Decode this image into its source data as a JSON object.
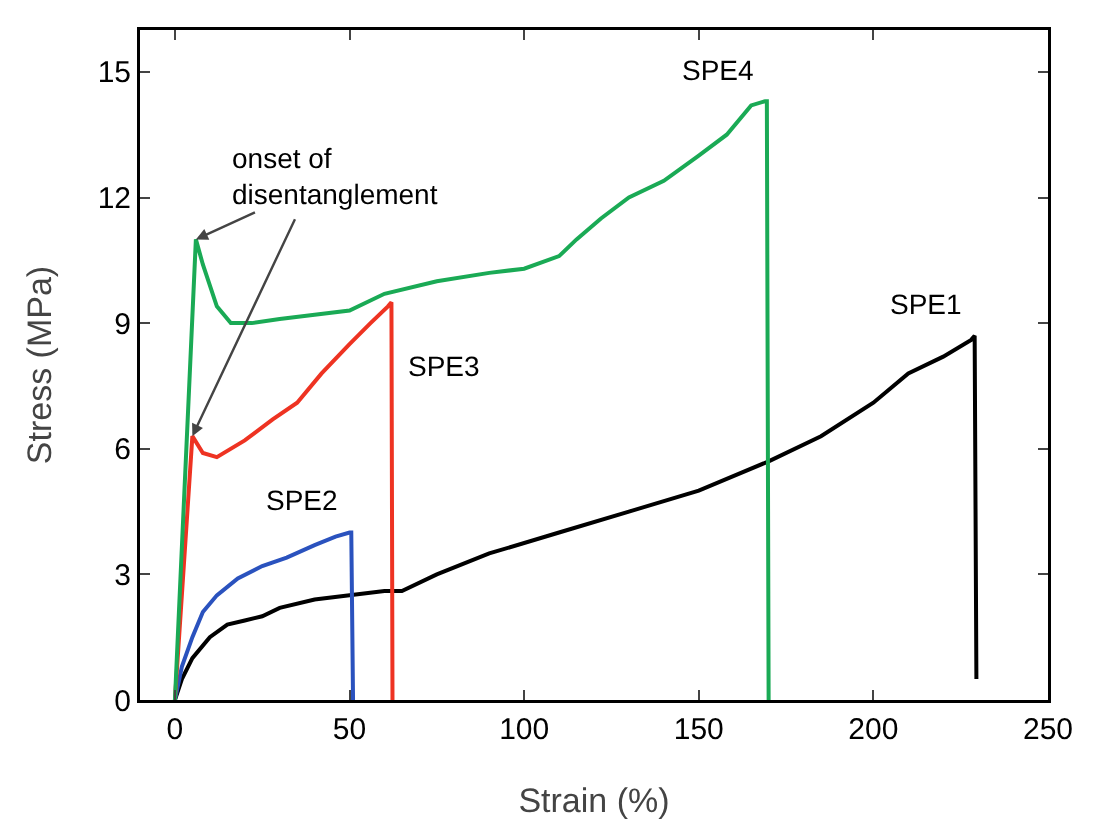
{
  "chart_data": {
    "type": "line",
    "xlabel": "Strain (%)",
    "ylabel": "Stress (MPa)",
    "xlim": [
      -10,
      250
    ],
    "ylim": [
      0,
      16
    ],
    "xticks": [
      0,
      50,
      100,
      150,
      200,
      250
    ],
    "yticks": [
      0,
      3,
      6,
      9,
      12,
      15
    ],
    "grid": false,
    "legend": false,
    "series": [
      {
        "name": "SPE1",
        "color": "#000000",
        "x": [
          0,
          2,
          5,
          10,
          15,
          20,
          25,
          30,
          40,
          50,
          60,
          65,
          75,
          90,
          110,
          130,
          150,
          170,
          185,
          200,
          210,
          220,
          228,
          229,
          229.5
        ],
        "values": [
          0,
          0.5,
          1,
          1.5,
          1.8,
          1.9,
          2,
          2.2,
          2.4,
          2.5,
          2.6,
          2.6,
          3,
          3.5,
          4,
          4.5,
          5,
          5.7,
          6.3,
          7.1,
          7.8,
          8.2,
          8.6,
          8.7,
          0.5
        ]
      },
      {
        "name": "SPE2",
        "color": "#2a52be",
        "x": [
          0,
          2,
          5,
          8,
          12,
          18,
          25,
          32,
          40,
          46,
          50,
          50.5,
          51
        ],
        "values": [
          0,
          0.8,
          1.5,
          2.1,
          2.5,
          2.9,
          3.2,
          3.4,
          3.7,
          3.9,
          4,
          4,
          0
        ]
      },
      {
        "name": "SPE3",
        "color": "#ee3322",
        "x": [
          0,
          5,
          8,
          12,
          20,
          28,
          35,
          42,
          50,
          56,
          61,
          62,
          62.3
        ],
        "values": [
          0,
          6.3,
          5.9,
          5.8,
          6.2,
          6.7,
          7.1,
          7.8,
          8.5,
          9,
          9.4,
          9.5,
          0
        ]
      },
      {
        "name": "SPE4",
        "color": "#1aaa55",
        "x": [
          0,
          6,
          8,
          12,
          16,
          22,
          30,
          40,
          50,
          60,
          75,
          90,
          100,
          110,
          115,
          122,
          130,
          140,
          150,
          158,
          165,
          169,
          169.5,
          170
        ],
        "values": [
          0,
          11,
          10.4,
          9.4,
          9,
          9,
          9.1,
          9.2,
          9.3,
          9.7,
          10,
          10.2,
          10.3,
          10.6,
          11,
          11.5,
          12,
          12.4,
          13,
          13.5,
          14.2,
          14.3,
          14.3,
          0
        ]
      }
    ],
    "annotations": [
      {
        "text": "onset of\ndisentanglement",
        "x": 6,
        "y": 11
      }
    ]
  }
}
